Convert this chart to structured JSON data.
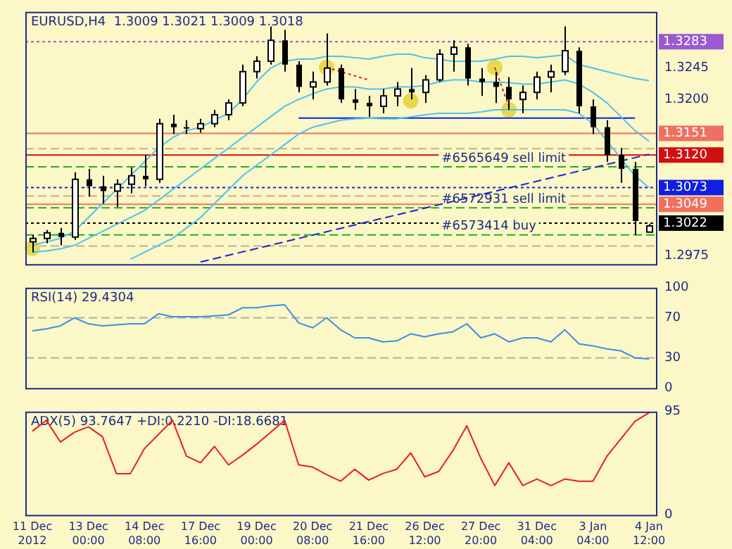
{
  "chart_data": [
    {
      "type": "candlestick",
      "title": "EURUSD,H4  1.3009 1.3021 1.3009 1.3018",
      "categories": [
        null,
        null,
        null,
        null,
        null,
        null,
        null,
        null,
        null,
        null,
        null,
        null,
        null,
        null,
        null,
        null,
        null,
        null,
        null,
        null,
        null,
        null,
        null,
        null,
        null,
        null,
        null,
        null,
        null,
        null,
        null,
        null,
        null,
        null,
        null,
        null,
        null,
        null,
        null,
        null,
        null,
        null,
        null,
        null,
        null
      ],
      "ohlc": [
        [
          1.2995,
          1.3005,
          1.298,
          1.3
        ],
        [
          1.3,
          1.3012,
          1.2993,
          1.3008
        ],
        [
          1.3008,
          1.3015,
          1.299,
          1.3002
        ],
        [
          1.3002,
          1.3095,
          1.2998,
          1.3085
        ],
        [
          1.3085,
          1.31,
          1.306,
          1.3075
        ],
        [
          1.3075,
          1.309,
          1.305,
          1.3068
        ],
        [
          1.3068,
          1.3085,
          1.3045,
          1.3078
        ],
        [
          1.3078,
          1.3102,
          1.3065,
          1.309
        ],
        [
          1.309,
          1.312,
          1.3075,
          1.3085
        ],
        [
          1.3085,
          1.3172,
          1.308,
          1.3165
        ],
        [
          1.3165,
          1.3178,
          1.315,
          1.316
        ],
        [
          1.316,
          1.317,
          1.315,
          1.3158
        ],
        [
          1.3158,
          1.3172,
          1.3152,
          1.3165
        ],
        [
          1.3165,
          1.3185,
          1.316,
          1.3178
        ],
        [
          1.3178,
          1.32,
          1.317,
          1.3195
        ],
        [
          1.3195,
          1.325,
          1.319,
          1.324
        ],
        [
          1.324,
          1.3262,
          1.323,
          1.3255
        ],
        [
          1.3255,
          1.3305,
          1.325,
          1.3285
        ],
        [
          1.3285,
          1.33,
          1.324,
          1.325
        ],
        [
          1.325,
          1.3255,
          1.321,
          1.3218
        ],
        [
          1.3218,
          1.324,
          1.32,
          1.3225
        ],
        [
          1.3225,
          1.3295,
          1.322,
          1.3245
        ],
        [
          1.3245,
          1.325,
          1.3195,
          1.32
        ],
        [
          1.32,
          1.3215,
          1.3185,
          1.3195
        ],
        [
          1.3195,
          1.3205,
          1.3175,
          1.319
        ],
        [
          1.319,
          1.3215,
          1.318,
          1.3205
        ],
        [
          1.3205,
          1.3225,
          1.319,
          1.3215
        ],
        [
          1.3215,
          1.3245,
          1.32,
          1.321
        ],
        [
          1.321,
          1.3235,
          1.3195,
          1.3228
        ],
        [
          1.3228,
          1.3272,
          1.3225,
          1.3265
        ],
        [
          1.3265,
          1.3285,
          1.324,
          1.3275
        ],
        [
          1.3275,
          1.328,
          1.322,
          1.323
        ],
        [
          1.323,
          1.3245,
          1.3205,
          1.3225
        ],
        [
          1.3225,
          1.324,
          1.3195,
          1.3218
        ],
        [
          1.3218,
          1.3232,
          1.3185,
          1.32
        ],
        [
          1.32,
          1.322,
          1.318,
          1.321
        ],
        [
          1.321,
          1.324,
          1.32,
          1.3232
        ],
        [
          1.3232,
          1.325,
          1.321,
          1.324
        ],
        [
          1.324,
          1.3305,
          1.3235,
          1.327
        ],
        [
          1.327,
          1.3275,
          1.318,
          1.319
        ],
        [
          1.319,
          1.32,
          1.315,
          1.316
        ],
        [
          1.316,
          1.317,
          1.311,
          1.312
        ],
        [
          1.312,
          1.313,
          1.308,
          1.31
        ],
        [
          1.31,
          1.311,
          1.3005,
          1.3025
        ],
        [
          1.3009,
          1.3021,
          1.3009,
          1.3018
        ]
      ],
      "series": [
        {
          "type": "line",
          "color": "#4dc3f0",
          "values": [
            1.299,
            1.2995,
            1.3,
            1.301,
            1.303,
            1.305,
            1.307,
            1.309,
            1.311,
            1.313,
            1.3145,
            1.3155,
            1.316,
            1.317,
            1.318,
            1.32,
            1.3225,
            1.3245,
            1.3255,
            1.3258,
            1.3258,
            1.3262,
            1.3262,
            1.326,
            1.3258,
            1.3262,
            1.3265,
            1.3265,
            1.326,
            1.3258,
            1.3255,
            1.3255,
            1.3255,
            1.3258,
            1.3262,
            1.3262,
            1.326,
            1.3262,
            1.3264,
            1.325,
            1.3245,
            1.324,
            1.3235,
            1.323,
            1.3227
          ]
        },
        {
          "type": "line",
          "color": "#4dc3f0",
          "values": [
            1.298,
            1.2982,
            1.2985,
            1.299,
            1.3,
            1.301,
            1.302,
            1.303,
            1.304,
            1.3055,
            1.307,
            1.3085,
            1.31,
            1.3115,
            1.313,
            1.3145,
            1.316,
            1.3175,
            1.319,
            1.32,
            1.3208,
            1.3215,
            1.3218,
            1.3218,
            1.3215,
            1.3215,
            1.3218,
            1.3218,
            1.322,
            1.3225,
            1.3228,
            1.3228,
            1.3225,
            1.3225,
            1.3224,
            1.3222,
            1.3222,
            1.3225,
            1.3228,
            1.3222,
            1.321,
            1.3195,
            1.3175,
            1.3155,
            1.314
          ]
        },
        {
          "type": "line",
          "color": "#4dc3f0",
          "values": [
            null,
            null,
            null,
            null,
            null,
            null,
            null,
            1.297,
            1.298,
            1.299,
            1.3,
            1.3015,
            1.303,
            1.305,
            1.307,
            1.309,
            1.3105,
            1.312,
            1.3135,
            1.315,
            1.316,
            1.3165,
            1.317,
            1.3172,
            1.3173,
            1.3172,
            1.3172,
            1.3175,
            1.3178,
            1.318,
            1.318,
            1.318,
            1.3182,
            1.3185,
            1.3185,
            1.3185,
            1.3185,
            1.3185,
            1.3185,
            1.318,
            1.3165,
            1.314,
            1.3115,
            1.309,
            1.3073
          ]
        },
        {
          "type": "line",
          "color": "#0020e0",
          "values": [
            null,
            null,
            null,
            null,
            null,
            null,
            null,
            null,
            null,
            null,
            null,
            null,
            null,
            null,
            null,
            null,
            null,
            null,
            null,
            1.3173,
            null,
            null,
            null,
            null,
            null,
            null,
            null,
            null,
            null,
            null,
            null,
            null,
            null,
            null,
            null,
            null,
            null,
            null,
            null,
            null,
            null,
            null,
            null,
            1.3173,
            null
          ]
        },
        {
          "type": "line",
          "color": "#2020d0",
          "line_style": "dashed",
          "values": [
            null,
            null,
            null,
            null,
            null,
            null,
            null,
            null,
            null,
            null,
            null,
            null,
            1.2966,
            null,
            null,
            null,
            null,
            null,
            null,
            null,
            null,
            null,
            null,
            null,
            null,
            null,
            null,
            null,
            null,
            null,
            null,
            null,
            null,
            null,
            null,
            null,
            null,
            null,
            null,
            null,
            null,
            null,
            null,
            null,
            1.3121
          ]
        },
        {
          "type": "line",
          "color": "#e02020",
          "line_style": "dotted",
          "values": [
            null,
            null,
            null,
            null,
            null,
            null,
            null,
            null,
            null,
            null,
            null,
            null,
            null,
            null,
            null,
            null,
            null,
            null,
            null,
            null,
            null,
            1.3246,
            1.324,
            1.3234,
            1.3228,
            null,
            null,
            null,
            null,
            null,
            null,
            null,
            null,
            null,
            null,
            null,
            null,
            null,
            null,
            null,
            null,
            null,
            null,
            null,
            null
          ]
        },
        {
          "type": "line",
          "color": "#e02020",
          "line_style": "dotted",
          "values": [
            null,
            null,
            null,
            null,
            null,
            null,
            null,
            null,
            null,
            null,
            null,
            null,
            null,
            null,
            null,
            null,
            null,
            null,
            null,
            null,
            null,
            null,
            null,
            null,
            null,
            null,
            null,
            null,
            null,
            null,
            null,
            null,
            null,
            1.3246,
            1.319,
            null,
            null,
            null,
            null,
            null,
            null,
            null,
            null,
            null,
            null
          ]
        },
        {
          "type": "scatter",
          "color": "#e8d850",
          "marker": "circle",
          "values": [
            1.2986,
            null,
            null,
            null,
            null,
            null,
            null,
            null,
            null,
            null,
            null,
            null,
            null,
            null,
            null,
            null,
            null,
            null,
            null,
            null,
            null,
            1.3246,
            null,
            null,
            null,
            null,
            null,
            1.3198,
            null,
            null,
            null,
            null,
            null,
            1.3246,
            1.3185,
            null,
            null,
            null,
            null,
            null,
            null,
            null,
            null,
            null,
            null
          ]
        }
      ],
      "ylim": [
        1.2963,
        1.3326
      ],
      "yticks": [
        1.2975,
        {
          "value": 1.32,
          "label": "1.3200"
        },
        1.3245
      ],
      "ref_lines": [
        {
          "axis": "y",
          "value": 1.3283,
          "label": "1.3283",
          "color": "#9a5ad0",
          "line_style": "dotted"
        },
        {
          "axis": "y",
          "value": 1.3151,
          "label": "1.3151",
          "color": "#f07060",
          "line_style": "solid"
        },
        {
          "axis": "y",
          "value": 1.3129,
          "color": "#c8b088",
          "line_style": "dashed"
        },
        {
          "axis": "y",
          "value": 1.312,
          "label": "1.3120",
          "color": "#d01010",
          "line_style": "solid"
        },
        {
          "axis": "y",
          "value": 1.3103,
          "label": "#6565649 sell limit",
          "color": "#20b020",
          "line_style": "dashed"
        },
        {
          "axis": "y",
          "value": 1.3073,
          "label": "1.3073",
          "color": "#1020e0",
          "line_style": "dotted"
        },
        {
          "axis": "y",
          "value": 1.3061,
          "color": "#c8b088",
          "line_style": "dashed"
        },
        {
          "axis": "y",
          "value": 1.3049,
          "label": "1.3049",
          "color": "#f07060",
          "line_style": "solid"
        },
        {
          "axis": "y",
          "value": 1.3044,
          "label": "#6572931 sell limit",
          "color": "#20b020",
          "line_style": "dashed"
        },
        {
          "axis": "y",
          "value": 1.3022,
          "label": "1.3022",
          "color": "#000000",
          "line_style": "dotted"
        },
        {
          "axis": "y",
          "value": 1.3005,
          "label": "#6573414 buy",
          "color": "#20b020",
          "line_style": "dashed"
        },
        {
          "axis": "y",
          "value": 1.2989,
          "color": "#c8b088",
          "line_style": "dashed"
        }
      ],
      "tick_labels": "y"
    },
    {
      "type": "line",
      "title": "RSI(14) 29.4304",
      "categories": [
        null,
        null,
        null,
        null,
        null,
        null,
        null,
        null,
        null,
        null,
        null,
        null,
        null,
        null,
        null,
        null,
        null,
        null,
        null,
        null,
        null,
        null,
        null,
        null,
        null,
        null,
        null,
        null,
        null,
        null,
        null,
        null,
        null,
        null,
        null,
        null,
        null,
        null,
        null,
        null,
        null,
        null,
        null,
        null,
        null
      ],
      "color": "#3a8ee8",
      "values": [
        57,
        59,
        62,
        70,
        64,
        62,
        63,
        64,
        64,
        74,
        71,
        71,
        71,
        72,
        73,
        80,
        80,
        82,
        83,
        65,
        60,
        70,
        58,
        50,
        50,
        46,
        47,
        54,
        51,
        54,
        56,
        64,
        50,
        54,
        46,
        50,
        50,
        46,
        58,
        44,
        42,
        39,
        37,
        30,
        29
      ],
      "ylim": [
        0,
        100
      ],
      "yticks": [
        0,
        30,
        70,
        100
      ],
      "ref_lines": [
        {
          "axis": "y",
          "value": 30,
          "color": "#b0b0a0",
          "line_style": "dashed"
        },
        {
          "axis": "y",
          "value": 70,
          "color": "#b0b0a0",
          "line_style": "dashed"
        }
      ],
      "tick_labels": "y"
    },
    {
      "type": "line",
      "title": "ADX(5) 93.7647 +DI:0.2210 -DI:18.6681",
      "categories": [
        "11 Dec 2012",
        null,
        null,
        null,
        "13 Dec 00:00",
        null,
        null,
        null,
        "14 Dec 08:00",
        null,
        null,
        null,
        "17 Dec 16:00",
        null,
        null,
        null,
        "19 Dec 00:00",
        null,
        null,
        null,
        "20 Dec 08:00",
        null,
        null,
        null,
        "21 Dec 16:00",
        null,
        null,
        null,
        "26 Dec 12:00",
        null,
        null,
        null,
        "27 Dec 20:00",
        null,
        null,
        null,
        "31 Dec 04:00",
        null,
        null,
        null,
        "3 Jan 04:00",
        null,
        null,
        null,
        "4 Jan 12:00"
      ],
      "color": "#e82020",
      "values": [
        77,
        87,
        67,
        76,
        81,
        72,
        38,
        38,
        61,
        74,
        87,
        54,
        48,
        63,
        46,
        55,
        65,
        76,
        87,
        46,
        44,
        37,
        31,
        42,
        32,
        38,
        42,
        57,
        35,
        40,
        59,
        82,
        52,
        27,
        48,
        27,
        33,
        27,
        33,
        31,
        31,
        54,
        70,
        86,
        94
      ],
      "ylim": [
        0,
        95
      ],
      "yticks": [
        0,
        95
      ]
    }
  ]
}
